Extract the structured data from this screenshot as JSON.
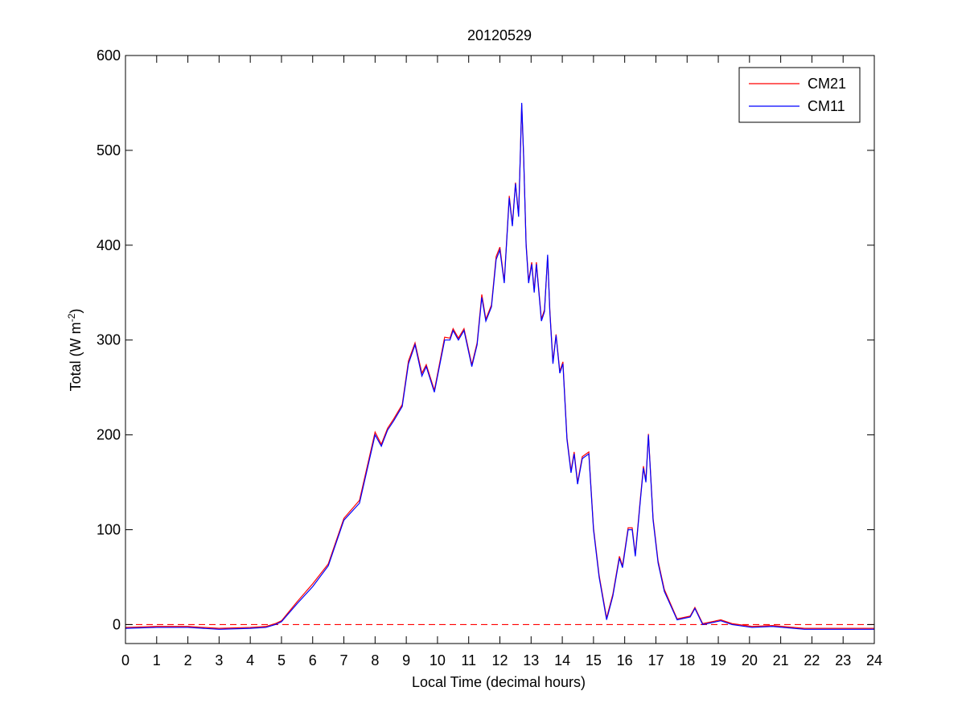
{
  "chart_data": {
    "type": "line",
    "title": "20120529",
    "xlabel": "Local Time (decimal hours)",
    "ylabel": [
      "Total (W m",
      "-2",
      ")"
    ],
    "x": [
      0,
      1,
      2,
      2.5,
      3,
      4,
      4.5,
      4.8,
      5.0,
      5.5,
      6.0,
      6.5,
      7.0,
      7.5,
      8.0,
      8.2,
      8.4,
      8.6,
      8.87,
      9.07,
      9.28,
      9.5,
      9.64,
      9.9,
      10.23,
      10.4,
      10.5,
      10.67,
      10.85,
      11.1,
      11.27,
      11.42,
      11.55,
      11.73,
      11.88,
      12.0,
      12.14,
      12.3,
      12.4,
      12.5,
      12.6,
      12.7,
      12.76,
      12.84,
      12.92,
      13.02,
      13.1,
      13.17,
      13.33,
      13.43,
      13.53,
      13.6,
      13.7,
      13.8,
      13.92,
      14.02,
      14.15,
      14.28,
      14.38,
      14.49,
      14.64,
      14.85,
      15.0,
      15.18,
      15.42,
      15.62,
      15.83,
      15.93,
      16.11,
      16.24,
      16.34,
      16.5,
      16.6,
      16.68,
      16.76,
      16.91,
      17.07,
      17.27,
      17.68,
      18.1,
      18.25,
      18.5,
      19.08,
      19.44,
      20.08,
      20.73,
      21.76,
      24
    ],
    "series": [
      {
        "name": "CM21",
        "color": "#ff0000",
        "values": [
          -3,
          -2,
          -2,
          -3,
          -4,
          -3,
          -2,
          1,
          4,
          24,
          43,
          64,
          112,
          131,
          203,
          190,
          207,
          217,
          232,
          278,
          297,
          265,
          274,
          247,
          303,
          302,
          312,
          302,
          312,
          274,
          297,
          348,
          322,
          337,
          388,
          398,
          362,
          452,
          422,
          466,
          432,
          548,
          494,
          402,
          362,
          382,
          352,
          382,
          322,
          332,
          388,
          332,
          277,
          306,
          267,
          277,
          197,
          162,
          182,
          150,
          177,
          182,
          102,
          52,
          7,
          32,
          72,
          62,
          102,
          102,
          74,
          132,
          167,
          152,
          201,
          112,
          67,
          37,
          6,
          9,
          18,
          1,
          5,
          1,
          -2,
          -1,
          -4,
          -4
        ]
      },
      {
        "name": "CM11",
        "color": "#0000ff",
        "values": [
          -4,
          -3,
          -3,
          -4,
          -5,
          -4,
          -3,
          0,
          3,
          22,
          40,
          62,
          110,
          128,
          200,
          188,
          205,
          215,
          230,
          275,
          295,
          262,
          272,
          245,
          300,
          300,
          310,
          300,
          310,
          272,
          295,
          345,
          320,
          335,
          385,
          395,
          360,
          450,
          420,
          465,
          430,
          550,
          495,
          400,
          360,
          380,
          350,
          380,
          320,
          330,
          390,
          330,
          275,
          305,
          265,
          275,
          195,
          160,
          180,
          148,
          175,
          180,
          100,
          50,
          5,
          30,
          70,
          60,
          100,
          100,
          72,
          130,
          165,
          150,
          200,
          110,
          65,
          35,
          5,
          8,
          17,
          0,
          4,
          0,
          -3,
          -2,
          -5,
          -5
        ]
      }
    ],
    "xlim": [
      0,
      24
    ],
    "xticks": [
      0,
      1,
      2,
      3,
      4,
      5,
      6,
      7,
      8,
      9,
      10,
      11,
      12,
      13,
      14,
      15,
      16,
      17,
      18,
      19,
      20,
      21,
      22,
      23,
      24
    ],
    "ylim": [
      -20,
      600
    ],
    "yticks": [
      0,
      100,
      200,
      300,
      400,
      500,
      600
    ],
    "hline": {
      "value": 0,
      "color": "#ff0000",
      "style": "dashed"
    },
    "legend": "upper right",
    "grid": false
  }
}
